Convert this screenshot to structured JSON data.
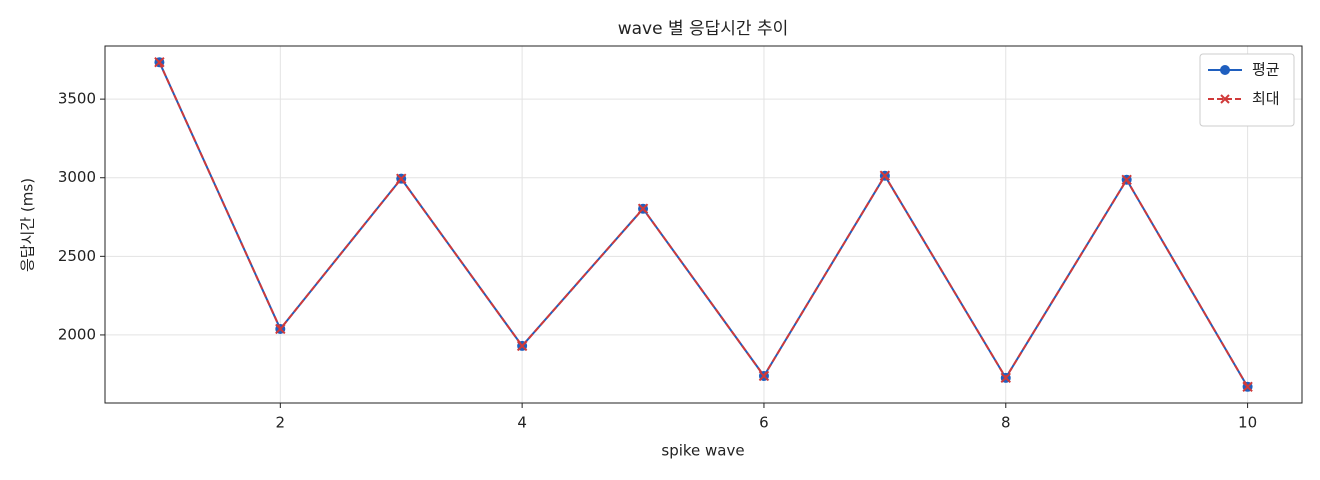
{
  "chart_data": {
    "type": "line",
    "title": "wave 별 응답시간 추이",
    "x_label": "spike wave",
    "y_label": "응답시간 (ms)",
    "x": [
      1,
      2,
      3,
      4,
      5,
      6,
      7,
      8,
      9,
      10
    ],
    "series": [
      {
        "name": "평균",
        "color": "#1f5fbf",
        "marker": "o",
        "linestyle": "solid",
        "values": [
          3735,
          2038,
          2994,
          1930,
          2803,
          1739,
          3013,
          1727,
          2987,
          1670
        ]
      },
      {
        "name": "최대",
        "color": "#d03a3a",
        "marker": "x",
        "linestyle": "dashed",
        "values": [
          3735,
          2038,
          2994,
          1930,
          2803,
          1739,
          3013,
          1727,
          2987,
          1670
        ]
      }
    ],
    "xlim": [
      0.55,
      10.45
    ],
    "ylim": [
      1567,
      3838
    ],
    "xticks": [
      2,
      4,
      6,
      8,
      10
    ],
    "yticks": [
      2000,
      2500,
      3000,
      3500
    ],
    "grid": true,
    "legend": "upper right"
  }
}
